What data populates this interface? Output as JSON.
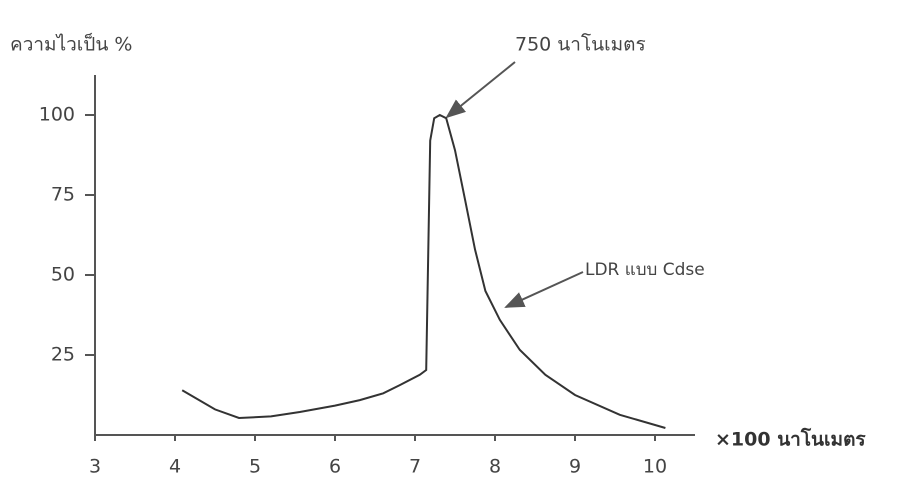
{
  "chart_data": {
    "type": "line",
    "y_label": "ความไวเป็น %",
    "x_label": "×100 นาโนเมตร",
    "annotations": [
      "750 นาโนเมตร",
      "LDR แบบ Cdse"
    ],
    "x": [
      4.09,
      4.5,
      4.8,
      5.2,
      5.56,
      6.0,
      6.31,
      6.6,
      6.81,
      7.06,
      7.14,
      7.19,
      7.24,
      7.31,
      7.39,
      7.5,
      7.63,
      7.75,
      7.88,
      8.06,
      8.31,
      8.63,
      9.0,
      9.56,
      10.13
    ],
    "values": [
      14,
      8,
      5.3,
      5.8,
      7.2,
      9.2,
      10.9,
      13,
      15.6,
      18.8,
      20.3,
      92,
      99,
      100,
      99,
      89,
      73,
      58,
      45,
      36,
      26.6,
      18.8,
      12.5,
      6.3,
      2.2
    ],
    "color": "#333333",
    "xlim": [
      3,
      10.5
    ],
    "xticks": [
      3,
      4,
      5,
      6,
      7,
      8,
      9,
      10
    ],
    "ylim": [
      0,
      112.5
    ],
    "yticks": [
      25,
      50,
      75,
      100
    ],
    "grid": false
  }
}
